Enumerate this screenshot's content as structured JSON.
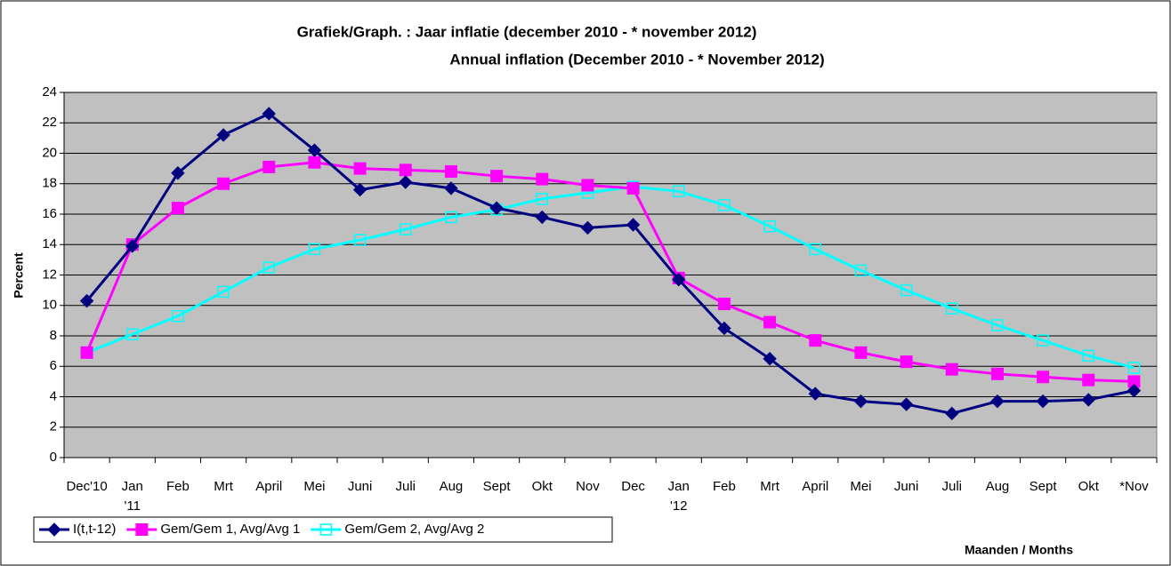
{
  "chart_data": {
    "type": "line",
    "title": [
      "Grafiek/Graph. :  Jaar inflatie  (december 2010 -  * november 2012)",
      "Annual inflation (December  2010 -  * November 2012)"
    ],
    "y_label": "Percent",
    "x_label": "Maanden / Months",
    "categories": [
      "Dec'10",
      "Jan\n'11",
      "Feb",
      "Mrt",
      "April",
      "Mei",
      "Juni",
      "Juli",
      "Aug",
      "Sept",
      "Okt",
      "Nov",
      "Dec",
      "Jan\n'12",
      "Feb",
      "Mrt",
      "April",
      "Mei",
      "Juni",
      "Juli",
      "Aug",
      "Sept",
      "Okt",
      "*Nov"
    ],
    "series": [
      {
        "name": "I(t,t-12)",
        "color": "#000080",
        "marker": "diamond",
        "values": [
          10.3,
          13.9,
          18.7,
          21.2,
          22.6,
          20.2,
          17.6,
          18.1,
          17.7,
          16.4,
          15.8,
          15.1,
          15.3,
          11.7,
          8.5,
          6.5,
          4.2,
          3.7,
          3.5,
          2.9,
          3.7,
          3.7,
          3.8,
          4.4
        ]
      },
      {
        "name": "Gem/Gem 1, Avg/Avg 1",
        "color": "#ff00ff",
        "marker": "square",
        "values": [
          6.9,
          14.0,
          16.4,
          18.0,
          19.1,
          19.4,
          19.0,
          18.9,
          18.8,
          18.5,
          18.3,
          17.9,
          17.7,
          11.8,
          10.1,
          8.9,
          7.7,
          6.9,
          6.3,
          5.8,
          5.5,
          5.3,
          5.1,
          5.0
        ]
      },
      {
        "name": "Gem/Gem 2, Avg/Avg 2",
        "color": "#00ffff",
        "marker": "hollow-square",
        "values": [
          6.9,
          8.1,
          9.3,
          10.9,
          12.5,
          13.7,
          14.3,
          15.0,
          15.8,
          16.3,
          17.0,
          17.4,
          17.8,
          17.5,
          16.6,
          15.2,
          13.7,
          12.3,
          11.0,
          9.8,
          8.7,
          7.7,
          6.7,
          5.9
        ]
      }
    ],
    "ylim": [
      0,
      24
    ],
    "yticks": [
      0,
      2,
      4,
      6,
      8,
      10,
      12,
      14,
      16,
      18,
      20,
      22,
      24
    ],
    "grid": true,
    "plot_background": "#c0c0c0",
    "legend": "bottom-left"
  }
}
